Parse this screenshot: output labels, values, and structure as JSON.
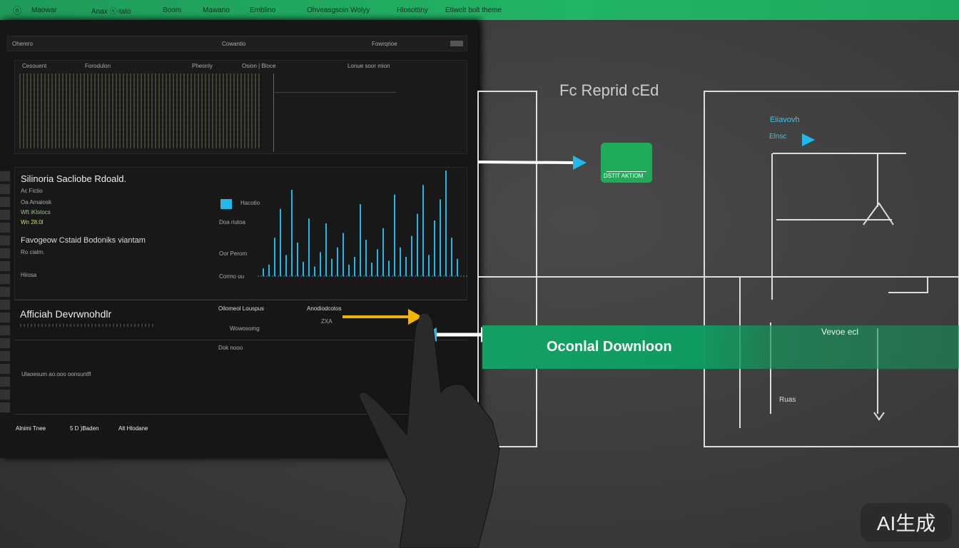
{
  "nav": {
    "items": [
      "Maowar",
      "Anax ⓥ-tato",
      "Boom",
      "Mawano",
      "Emblino",
      "Ohveasgsoin Wolyy",
      "Hlosottiny",
      "Etiwolt bolt theme"
    ]
  },
  "panel": {
    "toolbar": {
      "left": "Ohemro",
      "center": "Cowantio",
      "right": "Fowrqrioe"
    },
    "table_header": [
      "Cesouent",
      "Forodulon",
      "Pheonly",
      "Osion | Bloce",
      "Lonue soor mion"
    ],
    "section1": {
      "title": "Silinoria Sacliobe Rdoald.",
      "lines": [
        "Ac Fictio",
        "Oa Amaiosk",
        "Wft iKlstocs",
        "Wn 28.0l"
      ],
      "subtitle": "Favogeow Cstaid Bodoniks viantam",
      "sub_lines": [
        "Ro cialm.",
        "Hiiosa"
      ]
    },
    "chart": {
      "labels": [
        "Hacotio",
        "Doa riutoa",
        "Oor Perom",
        "Cormo uu"
      ],
      "values": [
        8,
        12,
        40,
        70,
        22,
        90,
        35,
        15,
        60,
        10,
        25,
        55,
        18,
        30,
        45,
        12,
        20,
        75,
        38,
        14,
        28,
        50,
        16,
        85,
        30,
        20,
        42,
        65,
        95,
        22,
        58,
        80,
        110,
        40,
        18
      ]
    },
    "section3": {
      "title": "Afficiah Devrwnohdlr",
      "col1": "Oilomeol Louspus",
      "col2": "Anodiodcotos",
      "val1": "Wowosomg",
      "val2": "Dok nooo",
      "val3": "ZXA",
      "line1": "Ulaoesum ao.ooo oonsuntfl"
    },
    "footer": [
      "Alnimi Tnee",
      "5 D )Baden",
      "Alt Hlodane"
    ]
  },
  "diagram": {
    "title": "Fc Reprid cEd",
    "green_button": "DSTIT AKTIOM",
    "label1": "Eiiavovh",
    "label2": "Elnsc",
    "label3": "Vevoe ecl",
    "label4": "Ruas"
  },
  "download_label": "Oconlal Downloon",
  "watermark": "AI生成",
  "colors": {
    "accent_green": "#1fab58",
    "cyan": "#22b8e8",
    "yellow": "#f0b400"
  }
}
